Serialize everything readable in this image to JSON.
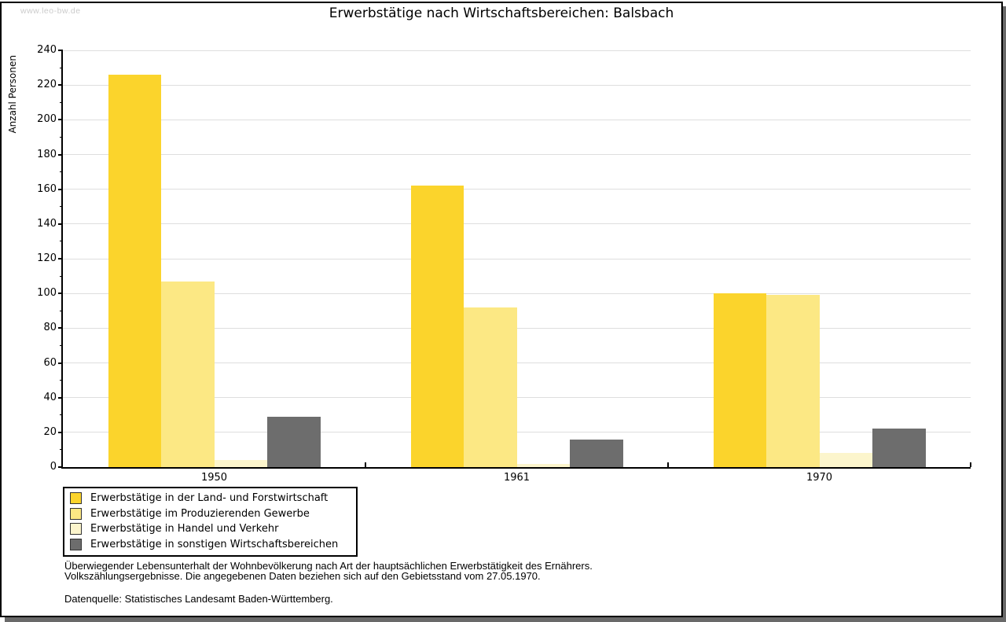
{
  "watermark": "www.leo-bw.de",
  "chart_data": {
    "type": "bar",
    "title": "Erwerbstätige nach Wirtschaftsbereichen: Balsbach",
    "xlabel": "",
    "ylabel": "Anzahl Personen",
    "ylim": [
      0,
      240
    ],
    "ytick_step": 20,
    "ytick_minor_step": 10,
    "grid": true,
    "legend_position": "bottom-left",
    "categories": [
      "1950",
      "1961",
      "1970"
    ],
    "series": [
      {
        "name": "Erwerbstätige in der Land- und Forstwirtschaft",
        "color": "#fbd42c",
        "values": [
          226,
          162,
          100
        ]
      },
      {
        "name": "Erwerbstätige im Produzierenden Gewerbe",
        "color": "#fce884",
        "values": [
          107,
          92,
          99
        ]
      },
      {
        "name": "Erwerbstätige in Handel und Verkehr",
        "color": "#fcf5cc",
        "values": [
          4,
          2,
          8
        ]
      },
      {
        "name": "Erwerbstätige in sonstigen Wirtschaftsbereichen",
        "color": "#6d6d6d",
        "values": [
          29,
          16,
          22
        ]
      }
    ]
  },
  "footnotes": {
    "line1": "Überwiegender Lebensunterhalt der Wohnbevölkerung nach Art der hauptsächlichen Erwerbstätigkeit des Ernährers.",
    "line2": "Volkszählungsergebnisse. Die angegebenen Daten beziehen sich auf den Gebietsstand vom 27.05.1970.",
    "source": "Datenquelle: Statistisches Landesamt Baden-Württemberg."
  },
  "colors": {
    "grid": "#dedede",
    "axis": "#000000",
    "watermark": "#cbcbcb",
    "shadow": "#696969"
  }
}
